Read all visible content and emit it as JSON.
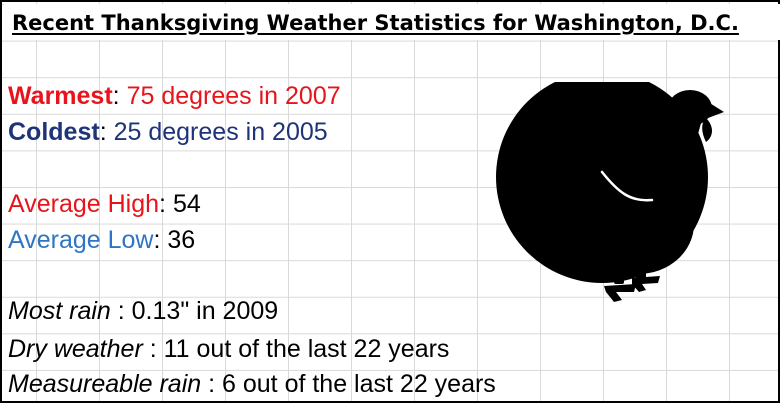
{
  "title": "Recent Thanksgiving Weather Statistics for Washington, D.C.",
  "stats": {
    "warmest": {
      "label": "Warmest",
      "value": "75 degrees in 2007"
    },
    "coldest": {
      "label": "Coldest",
      "value": "25 degrees in 2005"
    },
    "average_high": {
      "label": "Average High",
      "value": "54"
    },
    "average_low": {
      "label": "Average Low",
      "value": "36"
    },
    "most_rain": {
      "label": "Most rain",
      "value": "0.13\" in 2009"
    },
    "dry_weather": {
      "label": "Dry weather",
      "value": "11 out of the last 22 years"
    },
    "measureable_rain": {
      "label": "Measureable rain",
      "value": "6 out of the last 22 years"
    }
  },
  "separators": {
    "colon": ": ",
    "colon_spaced": " : "
  },
  "icons": {
    "turkey": "turkey-icon"
  },
  "colors": {
    "warm_red": "#e8141b",
    "cold_navy": "#1f3478",
    "average_blue": "#2e75c4",
    "text_black": "#000000",
    "turkey": "#000000",
    "grid": "#d9d9d9"
  }
}
